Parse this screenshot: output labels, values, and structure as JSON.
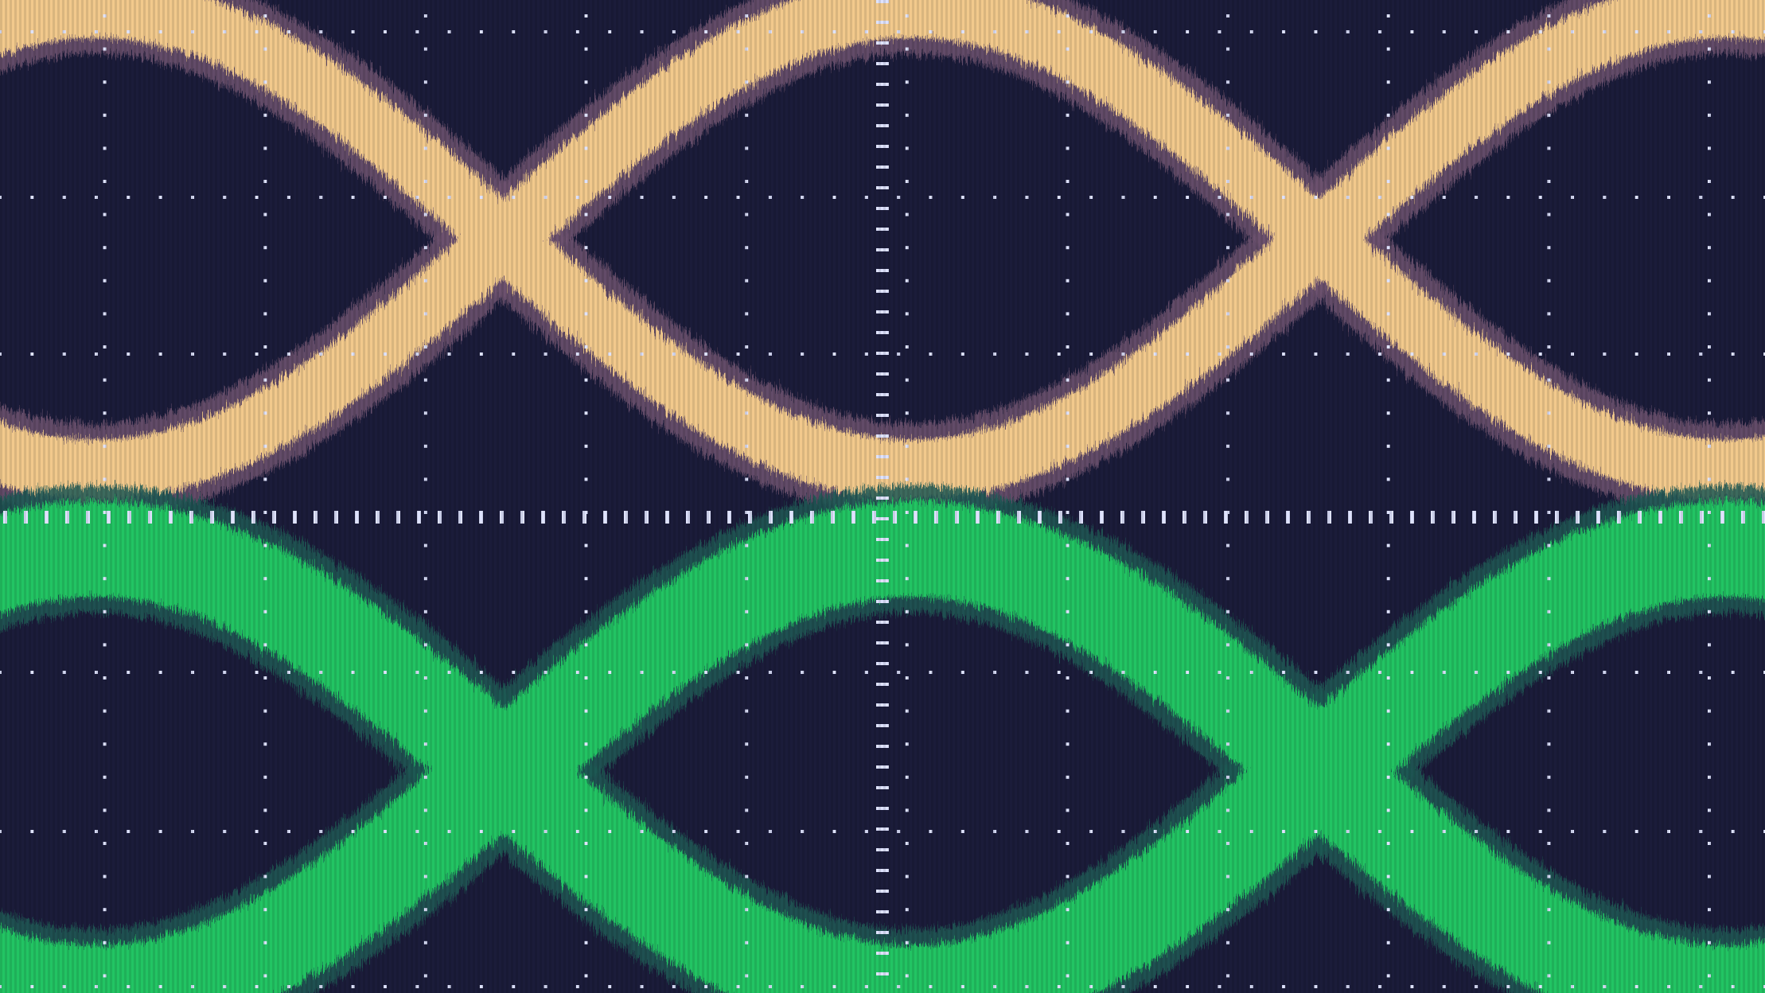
{
  "screen": {
    "background": "#1b1c3a",
    "eye_fill": "#232347",
    "grid_dot_color": "#dfe3ff"
  },
  "channels": [
    {
      "id": "ch1",
      "trace_color": "#f2c98c",
      "edge_color": "#6e5470"
    },
    {
      "id": "ch2",
      "trace_color": "#21c464",
      "edge_color": "#1f5a55"
    }
  ],
  "grid": {
    "divisions_x": 11,
    "divisions_y": 6,
    "minor_ticks_per_division": 5
  }
}
